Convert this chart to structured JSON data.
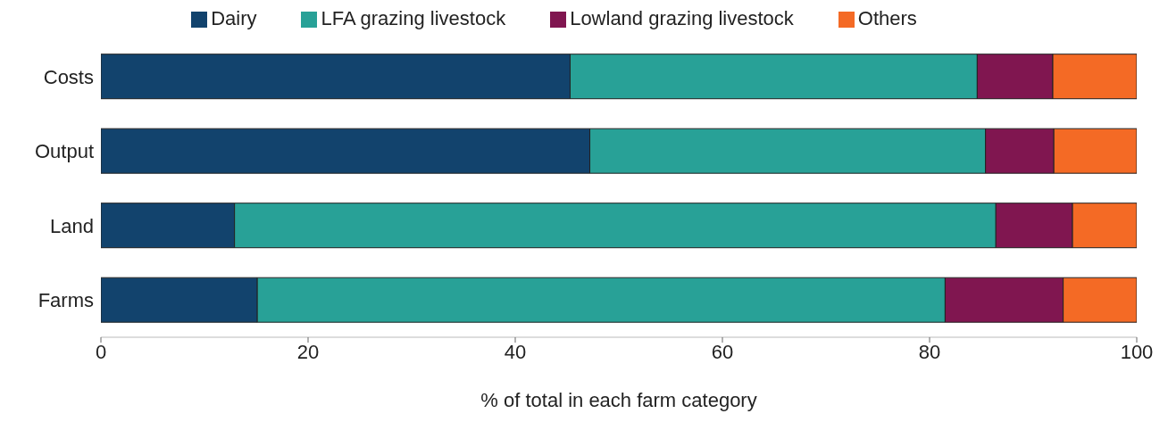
{
  "chart_data": {
    "type": "bar",
    "orientation": "horizontal",
    "stacked": true,
    "xlabel": "% of total in each farm category",
    "categories": [
      "Costs",
      "Output",
      "Land",
      "Farms"
    ],
    "series": [
      {
        "name": "Dairy",
        "color": "#12436d",
        "values": [
          45.3,
          47.2,
          12.9,
          15.1
        ]
      },
      {
        "name": "LFA grazing livestock",
        "color": "#28a197",
        "values": [
          39.3,
          38.2,
          73.5,
          66.4
        ]
      },
      {
        "name": "Lowland grazing livestock",
        "color": "#801650",
        "values": [
          7.3,
          6.6,
          7.4,
          11.4
        ]
      },
      {
        "name": "Others",
        "color": "#f46a25",
        "values": [
          8.1,
          8.0,
          6.2,
          7.1
        ]
      }
    ],
    "xlim": [
      0,
      100
    ],
    "xticks": [
      0,
      20,
      40,
      60,
      80,
      100
    ],
    "grid": false,
    "legend": "top"
  }
}
